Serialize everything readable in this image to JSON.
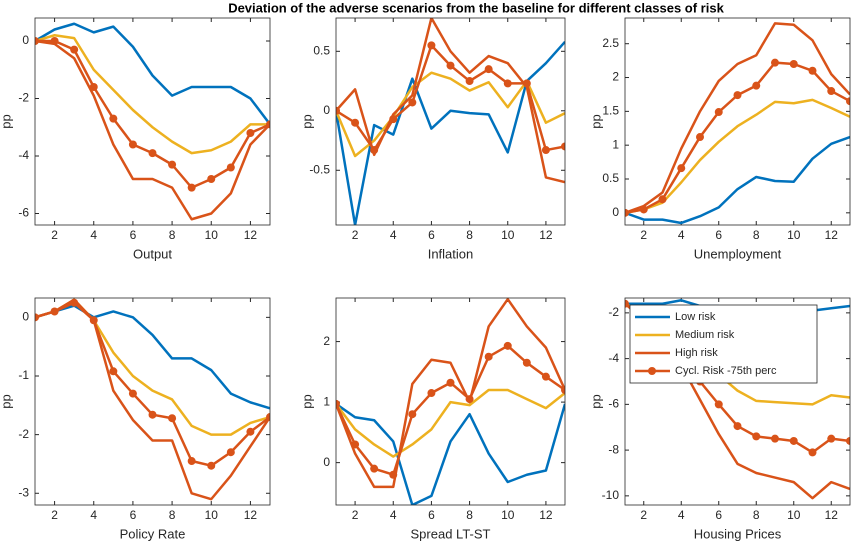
{
  "title": "Deviation of the adverse scenarios from the baseline for different classes of risk",
  "chart_data": [
    {
      "type": "line",
      "xlabel": "Output",
      "ylabel": "pp",
      "x": [
        1,
        2,
        3,
        4,
        5,
        6,
        7,
        8,
        9,
        10,
        11,
        12,
        13
      ],
      "xlim": [
        1,
        13
      ],
      "xticks": [
        2,
        4,
        6,
        8,
        10,
        12
      ],
      "ylim": [
        -6.4,
        0.8
      ],
      "yticks": [
        -6,
        -4,
        -2,
        0
      ],
      "series": [
        {
          "color": "#0072BD",
          "values": [
            0,
            0.4,
            0.6,
            0.3,
            0.5,
            -0.2,
            -1.2,
            -1.9,
            -1.6,
            -1.6,
            -1.6,
            -2.0,
            -2.9
          ]
        },
        {
          "color": "#EDB120",
          "values": [
            0,
            0.2,
            0.1,
            -1.0,
            -1.7,
            -2.4,
            -3.0,
            -3.5,
            -3.9,
            -3.8,
            -3.5,
            -2.9,
            -2.9
          ]
        },
        {
          "color": "#D95319",
          "values": [
            0,
            -0.1,
            -0.6,
            -1.9,
            -3.6,
            -4.8,
            -4.8,
            -5.1,
            -6.2,
            -6.0,
            -5.3,
            -3.6,
            -2.9
          ]
        },
        {
          "color": "#D95319",
          "marker": "o",
          "values": [
            0,
            0,
            -0.3,
            -1.6,
            -2.7,
            -3.6,
            -3.9,
            -4.3,
            -5.1,
            -4.8,
            -4.4,
            -3.2,
            -2.9
          ]
        }
      ]
    },
    {
      "type": "line",
      "xlabel": "Inflation",
      "ylabel": "pp",
      "x": [
        1,
        2,
        3,
        4,
        5,
        6,
        7,
        8,
        9,
        10,
        11,
        12,
        13
      ],
      "xlim": [
        1,
        13
      ],
      "xticks": [
        2,
        4,
        6,
        8,
        10,
        12
      ],
      "ylim": [
        -0.96,
        0.78
      ],
      "yticks": [
        -0.5,
        0,
        0.5
      ],
      "series": [
        {
          "color": "#0072BD",
          "values": [
            0,
            -0.96,
            -0.12,
            -0.2,
            0.27,
            -0.15,
            0,
            -0.02,
            -0.03,
            -0.35,
            0.25,
            0.4,
            0.58
          ]
        },
        {
          "color": "#EDB120",
          "values": [
            0,
            -0.38,
            -0.25,
            -0.05,
            0.2,
            0.32,
            0.27,
            0.17,
            0.24,
            0.03,
            0.25,
            -0.1,
            -0.02
          ]
        },
        {
          "color": "#D95319",
          "values": [
            0,
            0.18,
            -0.37,
            -0.03,
            0.13,
            0.78,
            0.5,
            0.32,
            0.46,
            0.4,
            0.2,
            -0.56,
            -0.6
          ]
        },
        {
          "color": "#D95319",
          "marker": "o",
          "values": [
            0,
            -0.1,
            -0.33,
            -0.07,
            0.07,
            0.55,
            0.38,
            0.25,
            0.35,
            0.23,
            0.23,
            -0.33,
            -0.3
          ]
        }
      ]
    },
    {
      "type": "line",
      "xlabel": "Unemployment",
      "ylabel": "pp",
      "x": [
        1,
        2,
        3,
        4,
        5,
        6,
        7,
        8,
        9,
        10,
        11,
        12,
        13
      ],
      "xlim": [
        1,
        13
      ],
      "xticks": [
        2,
        4,
        6,
        8,
        10,
        12
      ],
      "ylim": [
        -0.18,
        2.88
      ],
      "yticks": [
        0,
        0.5,
        1,
        1.5,
        2,
        2.5
      ],
      "series": [
        {
          "color": "#0072BD",
          "values": [
            0,
            -0.1,
            -0.1,
            -0.15,
            -0.05,
            0.08,
            0.35,
            0.53,
            0.47,
            0.46,
            0.8,
            1.02,
            1.12
          ]
        },
        {
          "color": "#EDB120",
          "values": [
            0,
            0.05,
            0.15,
            0.45,
            0.78,
            1.05,
            1.28,
            1.45,
            1.64,
            1.62,
            1.67,
            1.55,
            1.42
          ]
        },
        {
          "color": "#D95319",
          "values": [
            0,
            0.1,
            0.3,
            0.95,
            1.5,
            1.95,
            2.2,
            2.33,
            2.8,
            2.78,
            2.55,
            2.05,
            1.75
          ]
        },
        {
          "color": "#D95319",
          "marker": "o",
          "values": [
            0,
            0.05,
            0.2,
            0.66,
            1.12,
            1.49,
            1.74,
            1.88,
            2.22,
            2.2,
            2.1,
            1.8,
            1.65
          ]
        }
      ]
    },
    {
      "type": "line",
      "xlabel": "Policy Rate",
      "ylabel": "pp",
      "x": [
        1,
        2,
        3,
        4,
        5,
        6,
        7,
        8,
        9,
        10,
        11,
        12,
        13
      ],
      "xlim": [
        1,
        13
      ],
      "xticks": [
        2,
        4,
        6,
        8,
        10,
        12
      ],
      "ylim": [
        -3.2,
        0.33
      ],
      "yticks": [
        -3,
        -2,
        -1,
        0
      ],
      "series": [
        {
          "color": "#0072BD",
          "values": [
            0,
            0.1,
            0.2,
            0.0,
            0.1,
            0,
            -0.3,
            -0.7,
            -0.7,
            -0.9,
            -1.3,
            -1.45,
            -1.55
          ]
        },
        {
          "color": "#EDB120",
          "values": [
            0,
            0.1,
            0.3,
            -0.05,
            -0.6,
            -1.0,
            -1.25,
            -1.4,
            -1.85,
            -2.0,
            -2.0,
            -1.8,
            -1.7
          ]
        },
        {
          "color": "#D95319",
          "values": [
            0,
            0.1,
            0.3,
            -0.05,
            -1.25,
            -1.75,
            -2.1,
            -2.1,
            -3.0,
            -3.1,
            -2.7,
            -2.2,
            -1.7
          ]
        },
        {
          "color": "#D95319",
          "marker": "o",
          "values": [
            0,
            0.1,
            0.25,
            -0.05,
            -0.92,
            -1.3,
            -1.66,
            -1.72,
            -2.45,
            -2.53,
            -2.3,
            -1.95,
            -1.7
          ]
        }
      ]
    },
    {
      "type": "line",
      "xlabel": "Spread LT-ST",
      "ylabel": "pp",
      "x": [
        1,
        2,
        3,
        4,
        5,
        6,
        7,
        8,
        9,
        10,
        11,
        12,
        13
      ],
      "xlim": [
        1,
        13
      ],
      "xticks": [
        2,
        4,
        6,
        8,
        10,
        12
      ],
      "ylim": [
        -0.7,
        2.72
      ],
      "yticks": [
        0,
        1,
        2
      ],
      "series": [
        {
          "color": "#0072BD",
          "values": [
            0.97,
            0.75,
            0.7,
            0.35,
            -0.7,
            -0.55,
            0.35,
            0.8,
            0.15,
            -0.32,
            -0.2,
            -0.13,
            0.97
          ]
        },
        {
          "color": "#EDB120",
          "values": [
            0.97,
            0.55,
            0.3,
            0.1,
            0.3,
            0.55,
            1.0,
            0.95,
            1.2,
            1.2,
            1.05,
            0.9,
            1.15
          ]
        },
        {
          "color": "#D95319",
          "values": [
            0.97,
            0.15,
            -0.4,
            -0.4,
            1.3,
            1.7,
            1.65,
            1.0,
            2.25,
            2.7,
            2.25,
            1.9,
            1.2
          ]
        },
        {
          "color": "#D95319",
          "marker": "o",
          "values": [
            0.97,
            0.3,
            -0.1,
            -0.2,
            0.8,
            1.15,
            1.32,
            1.05,
            1.75,
            1.93,
            1.65,
            1.42,
            1.2
          ]
        }
      ]
    },
    {
      "type": "line",
      "xlabel": "Housing Prices",
      "ylabel": "pp",
      "x": [
        1,
        2,
        3,
        4,
        5,
        6,
        7,
        8,
        9,
        10,
        11,
        12,
        13
      ],
      "xlim": [
        1,
        13
      ],
      "xticks": [
        2,
        4,
        6,
        8,
        10,
        12
      ],
      "ylim": [
        -10.4,
        -1.35
      ],
      "yticks": [
        -10,
        -8,
        -6,
        -4,
        -2
      ],
      "legend": "upper right",
      "series": [
        {
          "name": "Low risk",
          "color": "#0072BD",
          "values": [
            -1.6,
            -1.6,
            -1.6,
            -1.45,
            -1.7,
            -1.7,
            -2.0,
            -2.0,
            -1.9,
            -1.9,
            -1.9,
            -1.8,
            -1.7
          ]
        },
        {
          "name": "Medium risk",
          "color": "#EDB120",
          "values": [
            -1.6,
            -2.0,
            -2.5,
            -3.2,
            -4.0,
            -4.7,
            -5.4,
            -5.85,
            -5.9,
            -5.95,
            -6.0,
            -5.6,
            -5.7
          ]
        },
        {
          "name": "High risk",
          "color": "#D95319",
          "values": [
            -1.6,
            -2.3,
            -3.2,
            -4.3,
            -5.8,
            -7.3,
            -8.6,
            -9.0,
            -9.2,
            -9.4,
            -10.1,
            -9.4,
            -9.7
          ]
        },
        {
          "name": "Cycl. Risk -75th perc",
          "color": "#D95319",
          "marker": "o",
          "values": [
            -1.6,
            -2.2,
            -3.0,
            -3.9,
            -5.0,
            -6.0,
            -6.95,
            -7.4,
            -7.5,
            -7.6,
            -8.1,
            -7.5,
            -7.6
          ]
        }
      ]
    }
  ]
}
